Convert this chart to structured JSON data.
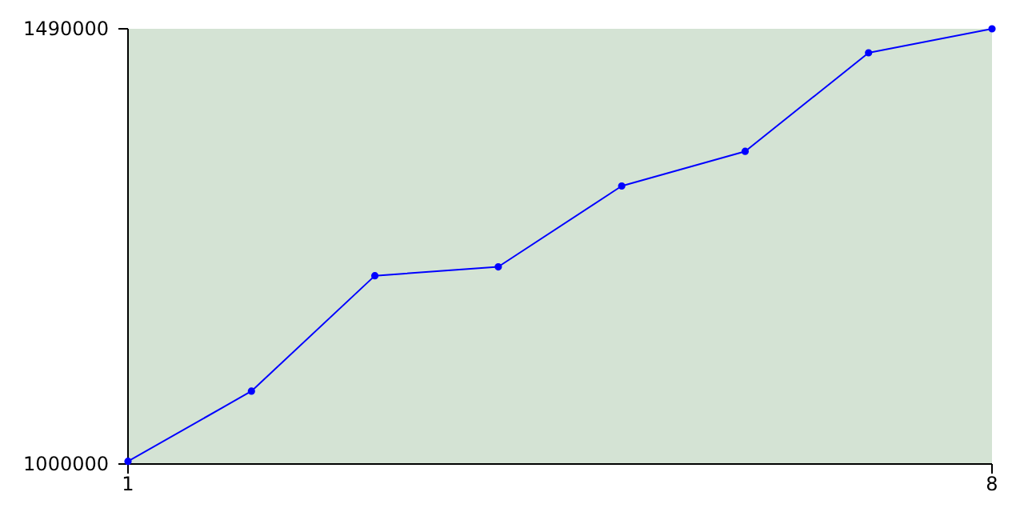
{
  "chart_data": {
    "type": "line",
    "x": [
      1,
      2,
      3,
      4,
      5,
      6,
      7,
      8
    ],
    "series": [
      {
        "color": "#0000ff",
        "values": [
          1003000,
          1082000,
          1212000,
          1222000,
          1313000,
          1352000,
          1463000,
          1490000
        ]
      }
    ],
    "xlim": [
      1,
      8
    ],
    "xticks": [
      1,
      8
    ],
    "ylim": [
      1000000,
      1490000
    ],
    "yticks": [
      1000000,
      1490000
    ],
    "marker": "circle",
    "line_style": "solid"
  }
}
